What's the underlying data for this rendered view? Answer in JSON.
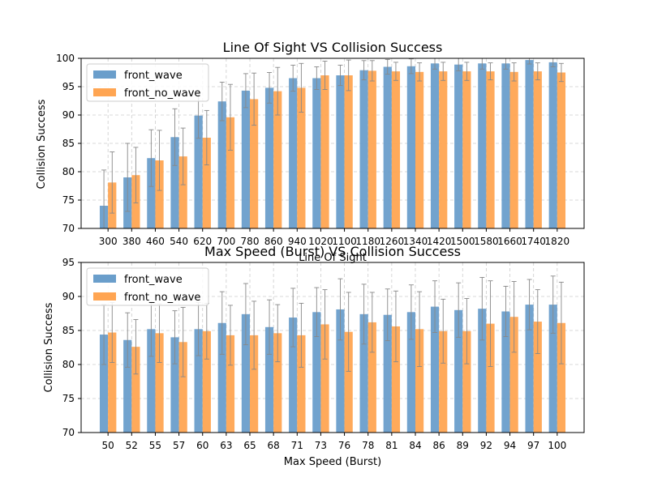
{
  "chart_data": [
    {
      "type": "bar",
      "title": "Line Of Sight VS Collision Success",
      "xlabel": "Line Of Sight",
      "ylabel": "Collision Success",
      "ylim": [
        70,
        100
      ],
      "yticks": [
        70,
        75,
        80,
        85,
        90,
        95,
        100
      ],
      "grid": true,
      "legend_position": "top-left",
      "categories": [
        "300",
        "380",
        "460",
        "540",
        "620",
        "700",
        "780",
        "860",
        "940",
        "1020",
        "1100",
        "1180",
        "1260",
        "1340",
        "1420",
        "1500",
        "1580",
        "1660",
        "1740",
        "1820"
      ],
      "series": [
        {
          "name": "front_wave",
          "color": "#6a9ecb",
          "values": [
            74.0,
            79.0,
            82.4,
            86.1,
            89.9,
            92.4,
            94.3,
            94.8,
            96.5,
            96.5,
            97.0,
            97.9,
            98.5,
            98.6,
            99.1,
            98.9,
            99.1,
            99.1,
            99.7,
            99.3
          ],
          "errors": [
            6.3,
            6.0,
            5.0,
            5.0,
            4.0,
            3.4,
            3.0,
            2.7,
            2.3,
            2.0,
            1.8,
            1.7,
            1.3,
            1.3,
            1.0,
            1.1,
            1.0,
            1.0,
            0.7,
            0.8
          ]
        },
        {
          "name": "front_no_wave",
          "color": "#ffa552",
          "values": [
            78.1,
            79.4,
            82.0,
            82.7,
            86.0,
            89.6,
            92.8,
            94.2,
            94.8,
            97.0,
            97.0,
            97.8,
            97.7,
            97.6,
            97.7,
            97.7,
            97.7,
            97.6,
            97.7,
            97.5
          ],
          "errors": [
            5.4,
            4.9,
            5.3,
            5.0,
            4.8,
            5.8,
            4.6,
            4.2,
            4.3,
            2.5,
            2.7,
            1.8,
            1.6,
            1.6,
            1.6,
            1.6,
            1.5,
            1.6,
            1.5,
            1.6
          ]
        }
      ]
    },
    {
      "type": "bar",
      "title": "Max Speed (Burst) VS Collision Success",
      "xlabel": "Max Speed (Burst)",
      "ylabel": "Collision Success",
      "ylim": [
        70,
        95
      ],
      "yticks": [
        70,
        75,
        80,
        85,
        90,
        95
      ],
      "grid": true,
      "legend_position": "top-left",
      "categories": [
        "50",
        "52",
        "55",
        "57",
        "60",
        "63",
        "65",
        "68",
        "71",
        "73",
        "76",
        "78",
        "81",
        "84",
        "86",
        "89",
        "92",
        "94",
        "97",
        "100"
      ],
      "series": [
        {
          "name": "front_wave",
          "color": "#6a9ecb",
          "values": [
            84.4,
            83.6,
            85.2,
            84.0,
            85.2,
            86.1,
            87.4,
            85.5,
            86.9,
            87.7,
            88.1,
            87.4,
            87.3,
            87.7,
            88.5,
            88.0,
            88.2,
            87.8,
            88.8,
            88.8
          ],
          "errors": [
            4.4,
            4.0,
            4.0,
            3.9,
            3.9,
            4.6,
            4.5,
            4.0,
            4.3,
            3.6,
            4.5,
            4.4,
            3.8,
            4.0,
            3.8,
            4.0,
            4.6,
            3.7,
            3.7,
            4.2
          ]
        },
        {
          "name": "front_no_wave",
          "color": "#ffa552",
          "values": [
            84.7,
            82.6,
            84.6,
            83.3,
            84.9,
            84.3,
            84.3,
            84.6,
            84.3,
            85.9,
            84.8,
            86.2,
            85.6,
            85.2,
            84.9,
            84.9,
            86.0,
            87.0,
            86.3,
            86.1
          ],
          "errors": [
            4.4,
            4.0,
            4.3,
            5.1,
            4.1,
            4.4,
            5.0,
            4.2,
            4.7,
            5.1,
            5.8,
            4.4,
            5.2,
            5.5,
            4.7,
            4.8,
            6.3,
            5.2,
            4.7,
            6.0
          ]
        }
      ]
    }
  ]
}
